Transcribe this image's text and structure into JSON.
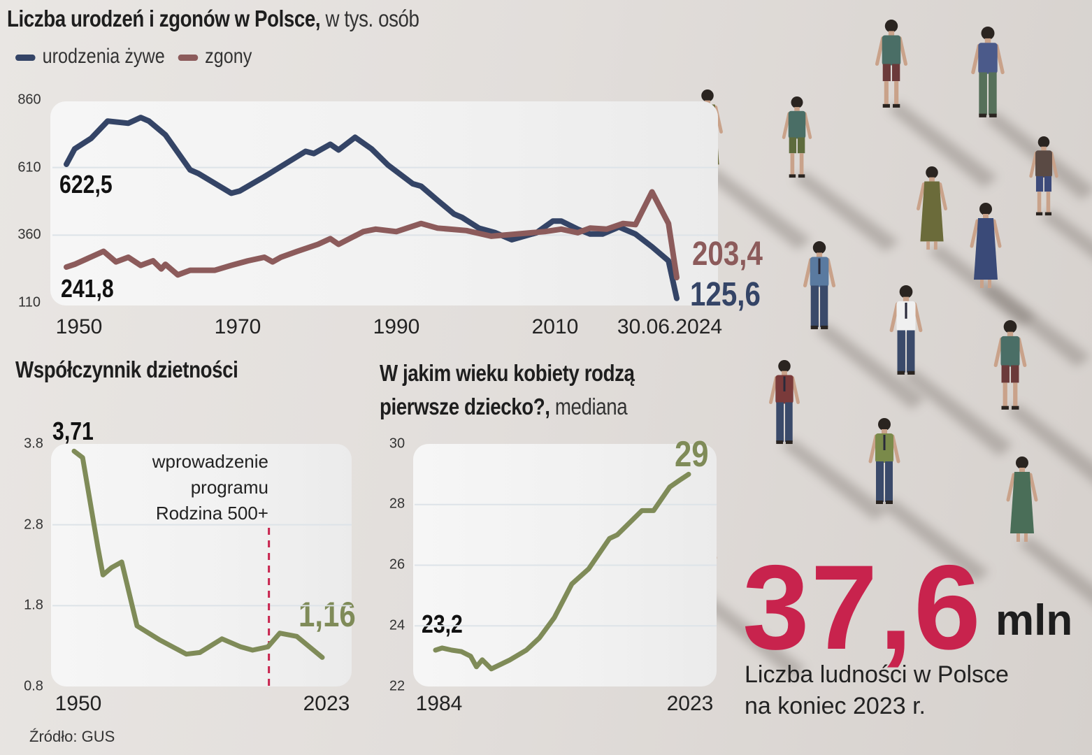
{
  "colors": {
    "births": "#344466",
    "deaths": "#8c5b5b",
    "green": "#7f8b58",
    "accent": "#c8234d",
    "text": "#1e1e1e"
  },
  "chart_data": [
    {
      "type": "line",
      "title": "Liczba urodzeń i zgonów w Polsce,",
      "subtitle": "w tys. osób",
      "legend": [
        "urodzenia żywe",
        "zgony"
      ],
      "legend_placement": "top-left",
      "yticks": [
        "860",
        "610",
        "360",
        "110"
      ],
      "ylim": [
        110,
        860
      ],
      "xticks": [
        "1950",
        "1970",
        "1990",
        "2010",
        "30.06.2024"
      ],
      "xlim": [
        1950,
        2024
      ],
      "grid": true,
      "annotations": {
        "births_start": "622,5",
        "deaths_start": "241,8",
        "deaths_end": "203,4",
        "births_end": "125,6"
      },
      "series": [
        {
          "name": "urodzenia żywe",
          "x": [
            1950,
            1951,
            1953,
            1955,
            1957.5,
            1959,
            1960,
            1962,
            1965,
            1966,
            1970,
            1971,
            1974,
            1979,
            1980,
            1982,
            1983,
            1985,
            1987,
            1989,
            1992,
            1993,
            1995,
            1997,
            1998,
            2000,
            2002,
            2004,
            2007,
            2009,
            2010,
            2012,
            2013.5,
            2015,
            2017,
            2019,
            2021,
            2023,
            2024
          ],
          "y": [
            622,
            679,
            718,
            782,
            774,
            795,
            782,
            731,
            601,
            588,
            515,
            523,
            576,
            670,
            662,
            696,
            675,
            722,
            679,
            619,
            550,
            541,
            489,
            438,
            425,
            386,
            369,
            343,
            369,
            412,
            412,
            382,
            364,
            364,
            390,
            364,
            317,
            265,
            126
          ]
        },
        {
          "name": "zgony",
          "x": [
            1950,
            1951,
            1954.5,
            1956,
            1957.5,
            1959,
            1960.5,
            1961.5,
            1962,
            1963.5,
            1965,
            1968,
            1970,
            1972,
            1974,
            1975,
            1976,
            1978,
            1980.5,
            1982,
            1983,
            1986,
            1987.5,
            1990,
            1993,
            1995,
            1998.5,
            2001.5,
            2004.5,
            2008,
            2010,
            2012,
            2013.5,
            2015.5,
            2017.5,
            2019,
            2021,
            2023,
            2024
          ],
          "y": [
            242,
            252,
            300,
            261,
            278,
            248,
            265,
            235,
            252,
            213,
            230,
            230,
            248,
            265,
            278,
            261,
            278,
            300,
            326,
            347,
            326,
            373,
            382,
            373,
            403,
            386,
            377,
            356,
            364,
            373,
            382,
            369,
            386,
            382,
            403,
            399,
            520,
            403,
            203
          ]
        }
      ]
    },
    {
      "type": "line",
      "title": "Współczynnik dzietności",
      "yticks": [
        "3.8",
        "2.8",
        "1.8",
        "0.8"
      ],
      "ylim": [
        0.8,
        3.8
      ],
      "xticks": [
        "1950",
        "2023"
      ],
      "xlim": [
        1950,
        2023
      ],
      "grid": true,
      "annotations": {
        "start": "3,71",
        "end": "1,16",
        "marker_lines": [
          "wprowadzenie",
          "programu",
          "Rodzina 500+"
        ],
        "marker_x": 2007.3
      },
      "series": [
        {
          "name": "Współczynnik dzietności",
          "x": [
            1950,
            1952.5,
            1957,
            1958.5,
            1961,
            1964,
            1968.5,
            1975,
            1983,
            1987,
            1993.5,
            1999,
            2002.5,
            2007,
            2010.5,
            2015.5,
            2023
          ],
          "y": [
            3.71,
            3.63,
            2.52,
            2.18,
            2.27,
            2.34,
            1.55,
            1.38,
            1.2,
            1.22,
            1.39,
            1.29,
            1.25,
            1.29,
            1.46,
            1.42,
            1.16
          ]
        }
      ]
    },
    {
      "type": "line",
      "title": "W jakim wieku kobiety rodzą",
      "title2": "pierwsze dziecko?,",
      "subtitle": "mediana",
      "yticks": [
        "30",
        "28",
        "26",
        "24",
        "22"
      ],
      "ylim": [
        22,
        30
      ],
      "xticks": [
        "1984",
        "2023"
      ],
      "xlim": [
        1984,
        2023
      ],
      "grid": true,
      "annotations": {
        "start": "23,2",
        "end": "29"
      },
      "series": [
        {
          "name": "mediana wieku",
          "x": [
            1984,
            1985,
            1986.5,
            1988,
            1989.4,
            1990.3,
            1991.2,
            1992.6,
            1995.5,
            1998,
            2000,
            2002.3,
            2005,
            2007.6,
            2010.8,
            2012,
            2015.8,
            2017.6,
            2020.1,
            2021.6,
            2023
          ],
          "y": [
            23.2,
            23.27,
            23.2,
            23.15,
            23.0,
            22.65,
            22.88,
            22.58,
            22.88,
            23.2,
            23.6,
            24.27,
            25.38,
            25.88,
            26.88,
            27.0,
            27.8,
            27.8,
            28.58,
            28.8,
            29.0
          ]
        }
      ]
    }
  ],
  "population": {
    "value": "37,6",
    "unit": "mln",
    "caption_line1": "Liczba ludności w Polsce",
    "caption_line2": "na koniec 2023 r."
  },
  "source": "Źródło: GUS"
}
